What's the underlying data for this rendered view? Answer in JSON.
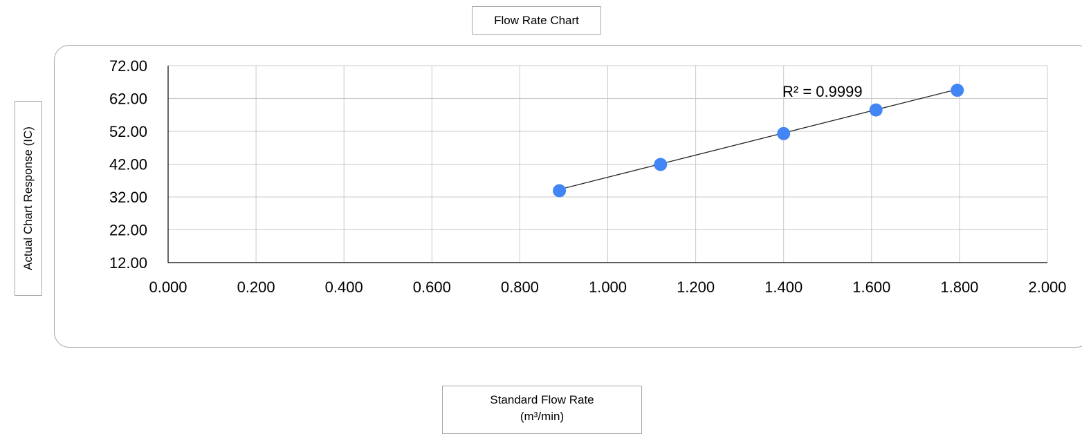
{
  "chart_data": {
    "type": "scatter",
    "title": "Flow Rate Chart",
    "xlabel_line1": "Standard Flow Rate",
    "xlabel_line2": "(m³/min)",
    "ylabel": "Actual Chart Response (IC)",
    "xlim": [
      0,
      2
    ],
    "ylim": [
      12,
      72
    ],
    "xticks": [
      "0.000",
      "0.200",
      "0.400",
      "0.600",
      "0.800",
      "1.000",
      "1.200",
      "1.400",
      "1.600",
      "1.800",
      "2.000"
    ],
    "yticks": [
      "12.00",
      "22.00",
      "32.00",
      "42.00",
      "52.00",
      "62.00",
      "72.00"
    ],
    "grid": true,
    "points": [
      {
        "x": 0.89,
        "y": 33.9
      },
      {
        "x": 1.12,
        "y": 41.9
      },
      {
        "x": 1.4,
        "y": 51.3
      },
      {
        "x": 1.61,
        "y": 58.5
      },
      {
        "x": 1.795,
        "y": 64.5
      }
    ],
    "trendline": {
      "x": [
        0.89,
        1.795
      ],
      "y": [
        34.3,
        64.8
      ]
    },
    "annotation": "R² = 0.9999",
    "point_color": "#4285f4"
  }
}
